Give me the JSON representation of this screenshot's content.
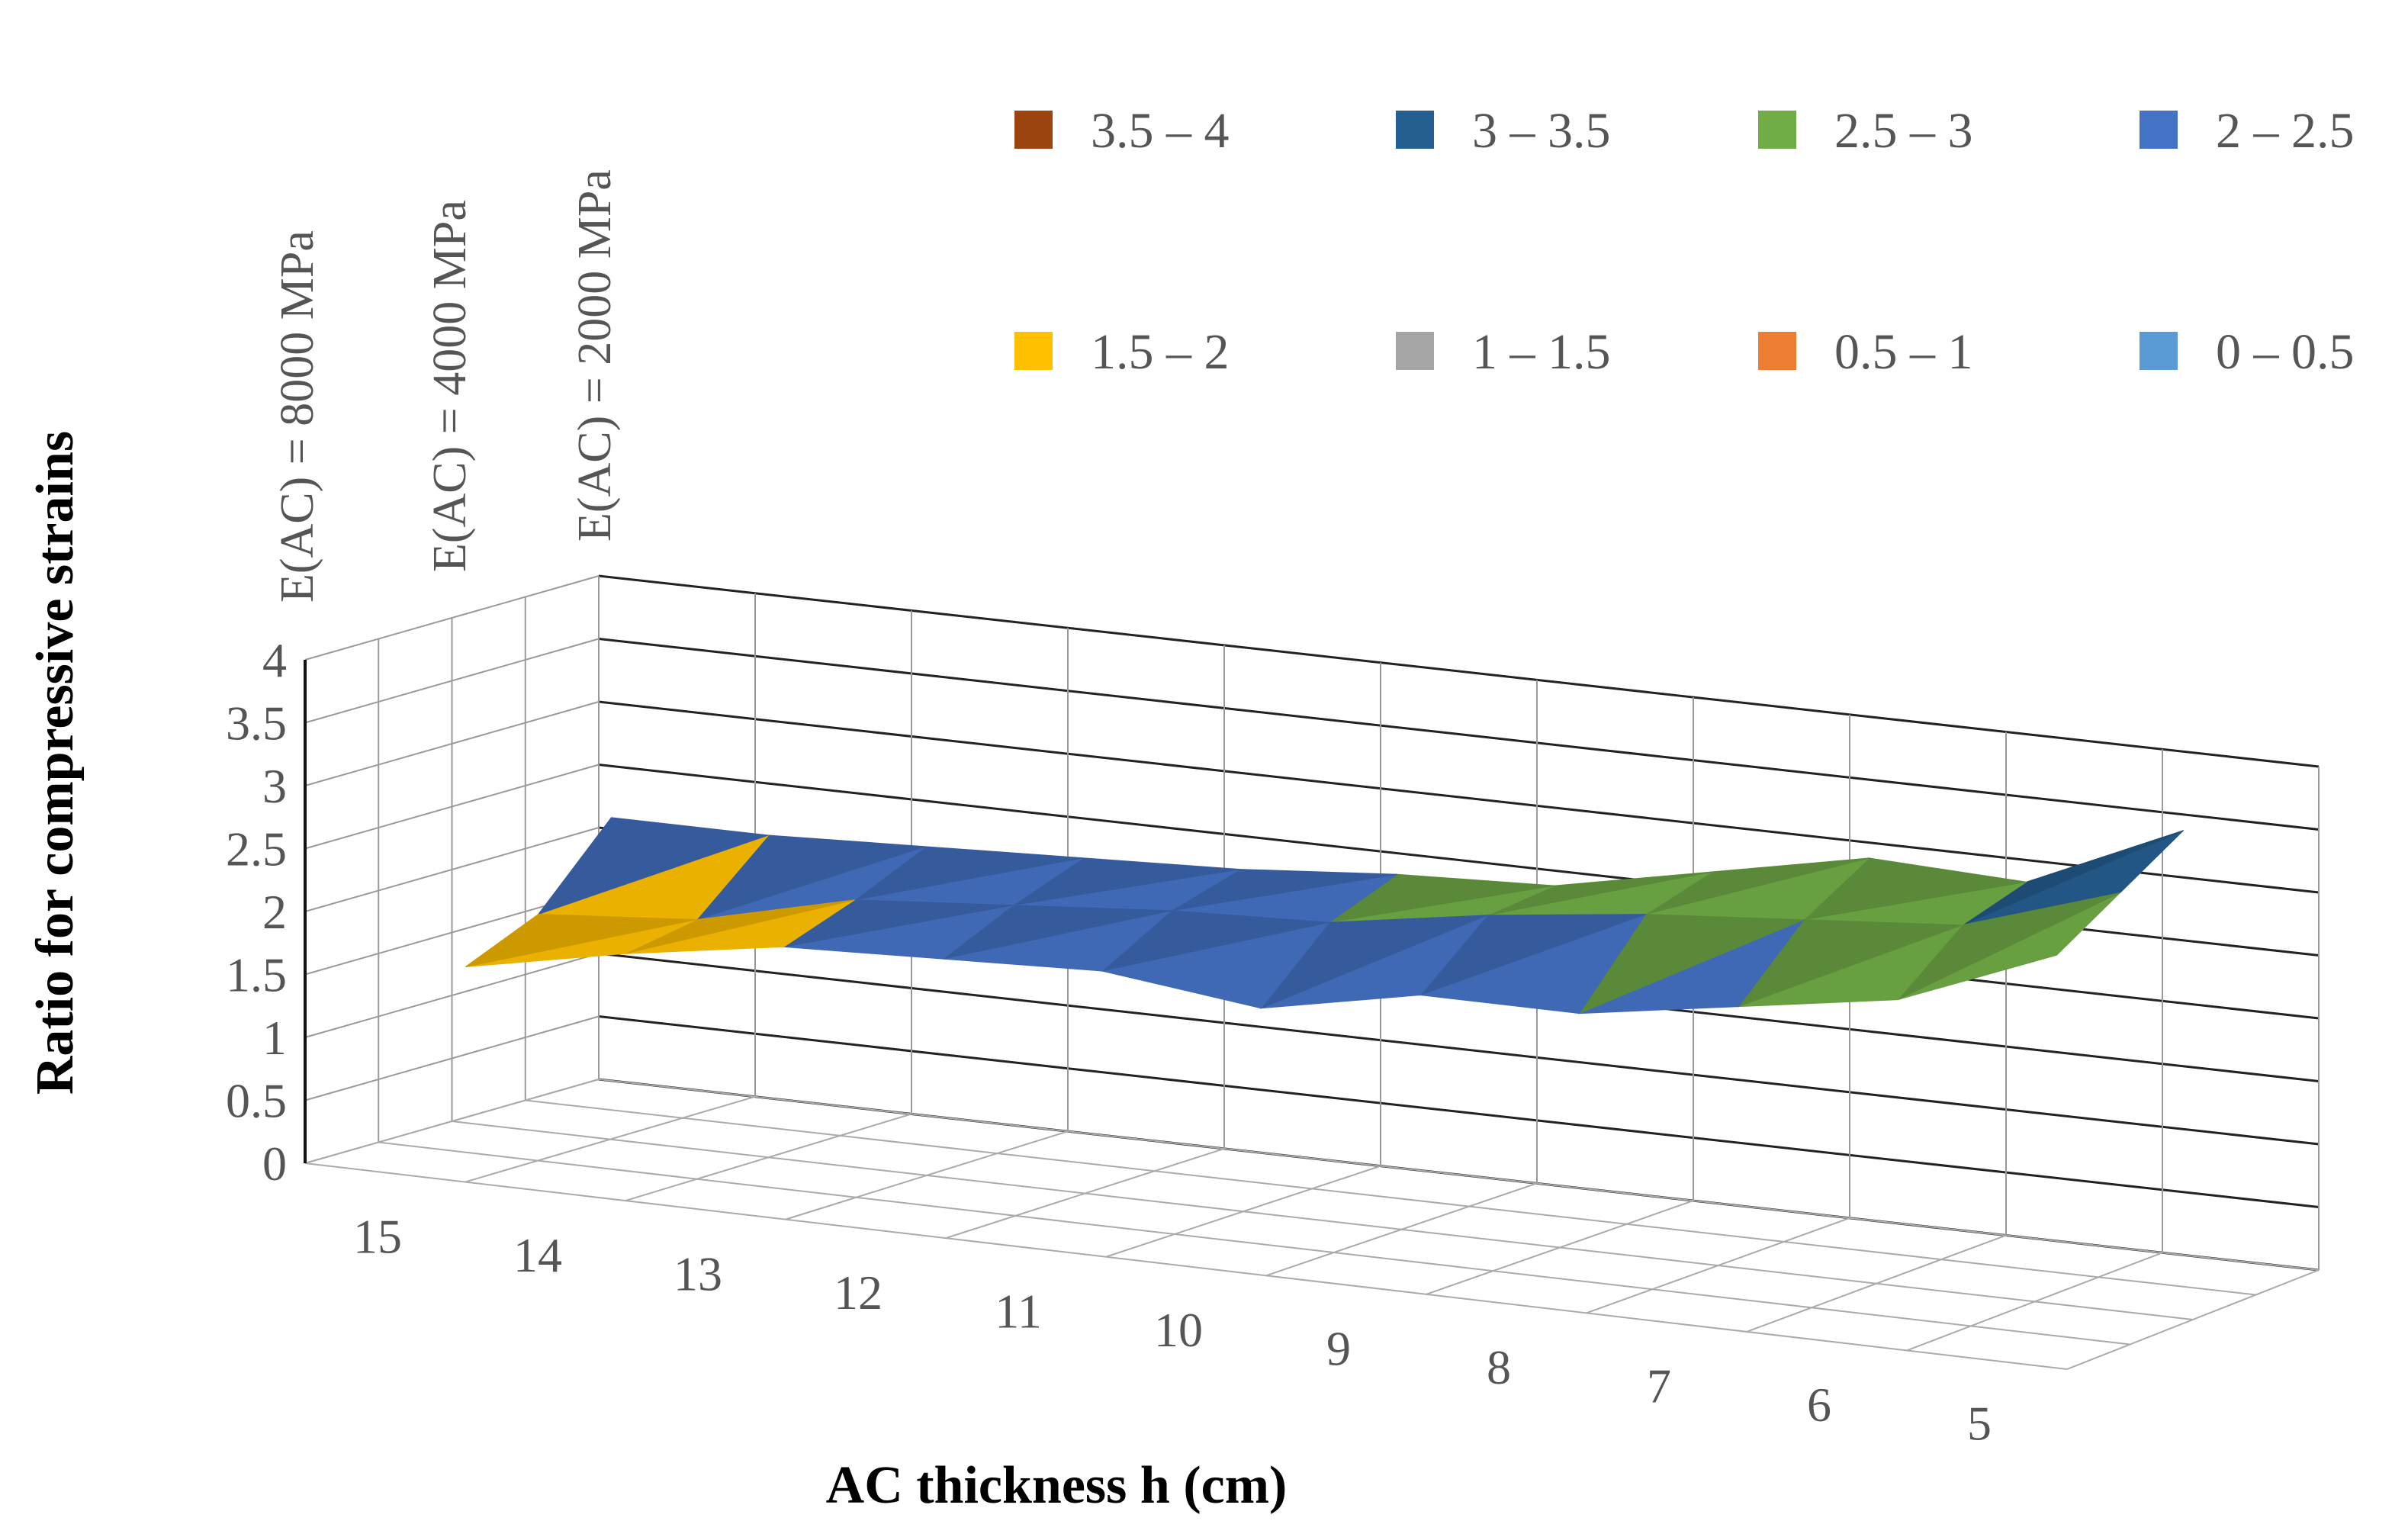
{
  "chart_data": {
    "type": "surface",
    "title": "",
    "xlabel": "AC thickness h (cm)",
    "ylabel": "Ratio for compressive strains",
    "zlim": [
      0,
      4
    ],
    "z_ticks": [
      "0",
      "0.5",
      "1",
      "1.5",
      "2",
      "2.5",
      "3",
      "3.5",
      "4"
    ],
    "x_categories": [
      "15",
      "14",
      "13",
      "12",
      "11",
      "10",
      "9",
      "8",
      "7",
      "6",
      "5"
    ],
    "series_names": [
      "E(AC) = 8000 MPa",
      "E(AC) = 4000 MPa",
      "E(AC) = 2000 MPa"
    ],
    "values": [
      [
        1.45,
        1.7,
        1.9,
        1.95,
        2.0,
        1.85,
        2.1,
        2.1,
        2.3,
        2.5,
        3.0
      ],
      [
        1.7,
        1.8,
        2.1,
        2.2,
        2.3,
        2.35,
        2.55,
        2.7,
        2.8,
        2.9,
        3.3
      ],
      [
        2.3,
        2.3,
        2.35,
        2.4,
        2.45,
        2.55,
        2.6,
        2.85,
        3.1,
        3.05,
        3.6
      ]
    ],
    "legend_position": "top-right",
    "gridlines": true,
    "legend": [
      {
        "label": "3.5 – 4",
        "color": "#9c4410"
      },
      {
        "label": "3 – 3.5",
        "color": "#255e91"
      },
      {
        "label": "2.5 – 3",
        "color": "#70ad47"
      },
      {
        "label": "2 – 2.5",
        "color": "#4472c4"
      },
      {
        "label": "1.5 – 2",
        "color": "#ffc000"
      },
      {
        "label": "1 – 1.5",
        "color": "#a5a5a5"
      },
      {
        "label": "0.5 – 1",
        "color": "#ed7d31"
      },
      {
        "label": "0 – 0.5",
        "color": "#5b9bd5"
      }
    ]
  }
}
